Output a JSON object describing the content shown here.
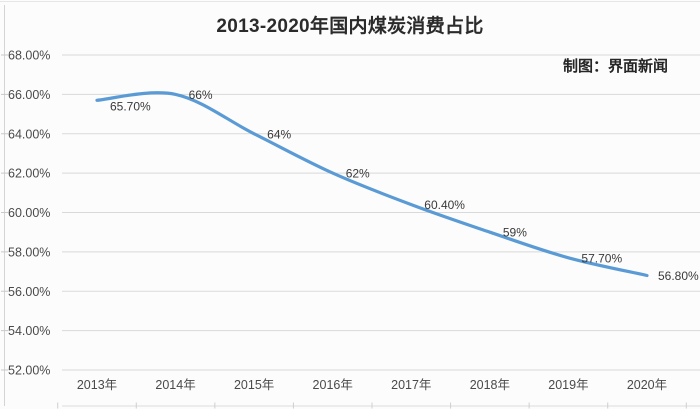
{
  "chart_data": {
    "type": "line",
    "title": "2013-2020年国内煤炭消费占比",
    "annotation": "制图：界面新闻",
    "categories": [
      "2013年",
      "2014年",
      "2015年",
      "2016年",
      "2017年",
      "2018年",
      "2019年",
      "2020年"
    ],
    "series": [
      {
        "values": [
          65.7,
          66,
          64,
          62,
          60.4,
          59,
          57.7,
          56.8
        ],
        "color": "#5B9BD5",
        "smooth": true
      }
    ],
    "data_labels": [
      "65.70%",
      "66%",
      "64%",
      "62%",
      "60.40%",
      "59%",
      "57.70%",
      "56.80%"
    ],
    "yaxis": {
      "min": 52,
      "max": 68,
      "step": 2,
      "tick_labels": [
        "68.00%",
        "66.00%",
        "64.00%",
        "62.00%",
        "60.00%",
        "58.00%",
        "56.00%",
        "54.00%",
        "52.00%"
      ]
    },
    "xlabel": "",
    "ylabel": "",
    "grid": "horizontal",
    "legend": "none",
    "colors": {
      "line": "#5B9BD5",
      "grid": "#D9D9D9",
      "axis_line": "#D4D4D4",
      "tick": "#C9C9C9",
      "axis_text": "#4A4A4A",
      "label_text": "#3A3A3A",
      "title_text": "#2B2B2B",
      "background": "#FCFCFC"
    }
  }
}
